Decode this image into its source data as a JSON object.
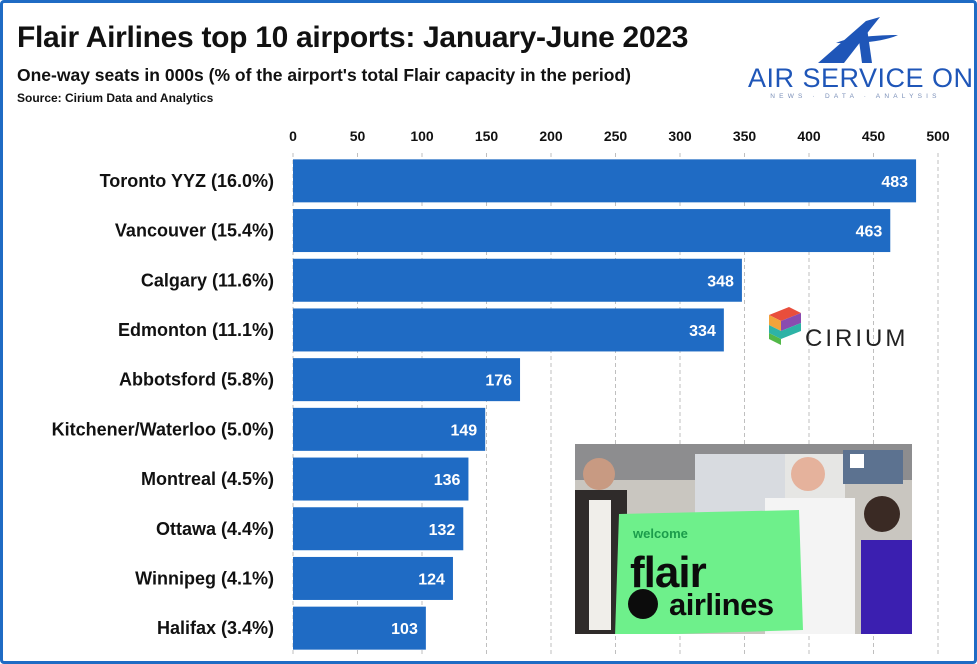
{
  "header": {
    "title": "Flair Airlines top 10 airports: January-June 2023",
    "subtitle": "One-way seats in 000s (% of the airport's total Flair capacity in the period)",
    "source": "Source: Cirium Data and Analytics"
  },
  "logos": {
    "air_service_one": {
      "name": "AIR SERVICE ONE",
      "tagline": "NEWS · DATA · ANALYSIS",
      "color": "#1f56b8"
    },
    "cirium": {
      "name": "CIRIUM"
    }
  },
  "photo": {
    "sign_welcome": "welcome",
    "sign_brand_line1": "flair",
    "sign_brand_line2": "airlines"
  },
  "colors": {
    "bar": "#1f6bc4",
    "frame": "#1f6bc4",
    "text": "#111111"
  },
  "chart_data": {
    "type": "bar",
    "orientation": "horizontal",
    "title": "Flair Airlines top 10 airports: January-June 2023",
    "subtitle": "One-way seats in 000s (% of the airport's total Flair capacity in the period)",
    "categories": [
      "Toronto YYZ (16.0%)",
      "Vancouver (15.4%)",
      "Calgary (11.6%)",
      "Edmonton (11.1%)",
      "Abbotsford (5.8%)",
      "Kitchener/Waterloo (5.0%)",
      "Montreal (4.5%)",
      "Ottawa (4.4%)",
      "Winnipeg (4.1%)",
      "Halifax (3.4%)"
    ],
    "values": [
      483,
      463,
      348,
      334,
      176,
      149,
      136,
      132,
      124,
      103
    ],
    "xlim": [
      0,
      500
    ],
    "xticks": [
      0,
      50,
      100,
      150,
      200,
      250,
      300,
      350,
      400,
      450,
      500
    ],
    "xaxis_position": "top",
    "grid": "vertical dashed",
    "data_labels": true,
    "legend": "none"
  }
}
